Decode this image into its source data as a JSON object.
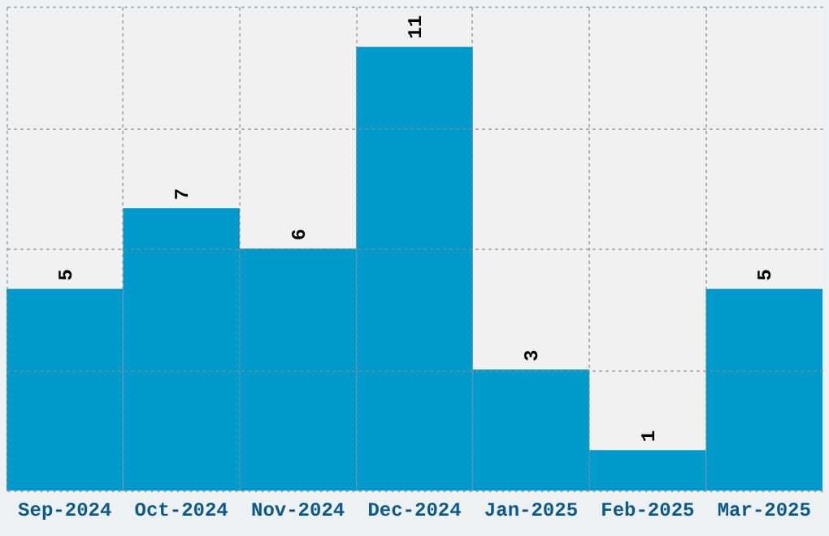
{
  "chart_data": {
    "type": "bar",
    "categories": [
      "Sep-2024",
      "Oct-2024",
      "Nov-2024",
      "Dec-2024",
      "Jan-2025",
      "Feb-2025",
      "Mar-2025"
    ],
    "values": [
      5,
      7,
      6,
      11,
      3,
      1,
      5
    ],
    "color": "#0099cc",
    "ylim": [
      0,
      12
    ],
    "yticks": [
      0,
      3,
      6,
      9,
      12
    ],
    "grid": true,
    "tick_labels": "x",
    "data_labels": true
  }
}
